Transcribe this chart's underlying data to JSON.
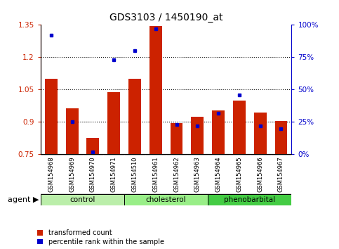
{
  "title": "GDS3103 / 1450190_at",
  "samples": [
    "GSM154968",
    "GSM154969",
    "GSM154970",
    "GSM154971",
    "GSM154510",
    "GSM154961",
    "GSM154962",
    "GSM154963",
    "GSM154964",
    "GSM154965",
    "GSM154966",
    "GSM154967"
  ],
  "transformed_count": [
    1.1,
    0.965,
    0.825,
    1.04,
    1.1,
    1.345,
    0.895,
    0.925,
    0.955,
    1.0,
    0.945,
    0.905
  ],
  "percentile_rank": [
    92,
    25,
    2,
    73,
    80,
    97,
    23,
    22,
    32,
    46,
    22,
    20
  ],
  "ylim_left": [
    0.75,
    1.35
  ],
  "ylim_right": [
    0,
    100
  ],
  "yticks_left": [
    0.75,
    0.9,
    1.05,
    1.2,
    1.35
  ],
  "yticks_right": [
    0,
    25,
    50,
    75,
    100
  ],
  "ytick_labels_left": [
    "0.75",
    "0.9",
    "1.05",
    "1.2",
    "1.35"
  ],
  "ytick_labels_right": [
    "0%",
    "25%",
    "50%",
    "75%",
    "100%"
  ],
  "groups": [
    {
      "label": "control",
      "indices": [
        0,
        1,
        2,
        3
      ],
      "color": "#bbeeaa"
    },
    {
      "label": "cholesterol",
      "indices": [
        4,
        5,
        6,
        7
      ],
      "color": "#99ee88"
    },
    {
      "label": "phenobarbital",
      "indices": [
        8,
        9,
        10,
        11
      ],
      "color": "#44cc44"
    }
  ],
  "bar_color": "#cc2200",
  "dot_color": "#0000cc",
  "bar_bottom": 0.75,
  "bg_color": "#ffffff",
  "legend_items": [
    "transformed count",
    "percentile rank within the sample"
  ],
  "tick_bg_color": "#d8d8d8"
}
